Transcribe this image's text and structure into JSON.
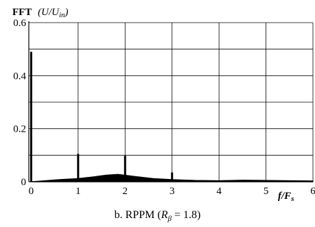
{
  "chart_data": {
    "type": "line",
    "title": "",
    "ylabel": {
      "main": "FFT",
      "open": "(",
      "u": "U",
      "slash": "/",
      "u2": "U",
      "sub": "in",
      "close": ")"
    },
    "xlabel": {
      "f": "f",
      "slash": "/",
      "F": "F",
      "sub": "s"
    },
    "xlim": [
      -0.05,
      6
    ],
    "ylim": [
      0,
      0.6
    ],
    "x_ticks": [
      0,
      1,
      2,
      3,
      4,
      5,
      6
    ],
    "x_tick_labels": [
      "0",
      "1",
      "2",
      "3",
      "4",
      "5",
      "6"
    ],
    "y_ticks": [
      0,
      0.2,
      0.4,
      0.6
    ],
    "y_tick_labels": [
      "0",
      "0.2",
      "0.4",
      "0.6"
    ],
    "grid": true,
    "series": [
      {
        "color": "#000000",
        "spikes": [
          {
            "x": 0.0,
            "y": 0.49
          },
          {
            "x": 1.0,
            "y": 0.105
          },
          {
            "x": 2.0,
            "y": 0.098
          },
          {
            "x": 3.0,
            "y": 0.035
          }
        ],
        "envelope": [
          {
            "x": 0.0,
            "y": 0.0
          },
          {
            "x": 0.3,
            "y": 0.004
          },
          {
            "x": 0.6,
            "y": 0.008
          },
          {
            "x": 1.0,
            "y": 0.012
          },
          {
            "x": 1.3,
            "y": 0.018
          },
          {
            "x": 1.6,
            "y": 0.025
          },
          {
            "x": 1.85,
            "y": 0.028
          },
          {
            "x": 2.2,
            "y": 0.02
          },
          {
            "x": 2.6,
            "y": 0.012
          },
          {
            "x": 3.0,
            "y": 0.008
          },
          {
            "x": 3.5,
            "y": 0.005
          },
          {
            "x": 4.0,
            "y": 0.004
          },
          {
            "x": 4.5,
            "y": 0.006
          },
          {
            "x": 5.0,
            "y": 0.005
          },
          {
            "x": 5.5,
            "y": 0.004
          },
          {
            "x": 6.0,
            "y": 0.003
          }
        ]
      }
    ]
  },
  "caption": {
    "prefix": "b. RPPM (",
    "r": "R",
    "sub": "β",
    "suffix": " = 1.8)"
  }
}
